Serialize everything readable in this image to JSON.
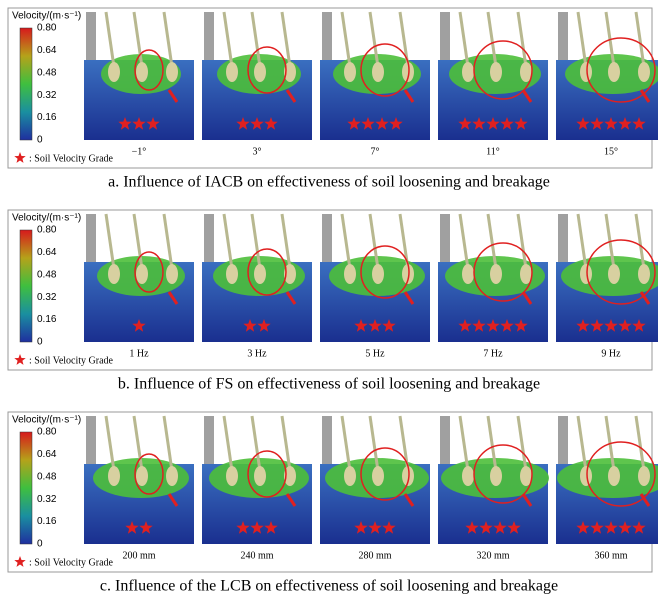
{
  "panels": [
    {
      "colorbar": {
        "label": "Velocity/(m·s⁻¹)",
        "ticks": [
          "0.80",
          "0.64",
          "0.48",
          "0.32",
          "0.16",
          "0"
        ]
      },
      "legend": ": Soil Velocity Grade",
      "images": [
        {
          "label": "−1°",
          "stars": 3
        },
        {
          "label": "3°",
          "stars": 3
        },
        {
          "label": "7°",
          "stars": 4
        },
        {
          "label": "11°",
          "stars": 5
        },
        {
          "label": "15°",
          "stars": 5
        }
      ],
      "caption": "a. Influence of IACB on effectiveness of soil loosening and breakage"
    },
    {
      "colorbar": {
        "label": "Velocity/(m·s⁻¹)",
        "ticks": [
          "0.80",
          "0.64",
          "0.48",
          "0.32",
          "0.16",
          "0"
        ]
      },
      "legend": ": Soil Velocity Grade",
      "images": [
        {
          "label": "1 Hz",
          "stars": 1
        },
        {
          "label": "3 Hz",
          "stars": 2
        },
        {
          "label": "5 Hz",
          "stars": 3
        },
        {
          "label": "7 Hz",
          "stars": 5
        },
        {
          "label": "9 Hz",
          "stars": 5
        }
      ],
      "caption": "b. Influence of FS on effectiveness of soil loosening and breakage"
    },
    {
      "colorbar": {
        "label": "Velocity/(m·s⁻¹)",
        "ticks": [
          "0.80",
          "0.64",
          "0.48",
          "0.32",
          "0.16",
          "0"
        ]
      },
      "legend": ": Soil Velocity Grade",
      "images": [
        {
          "label": "200 mm",
          "stars": 2
        },
        {
          "label": "240 mm",
          "stars": 3
        },
        {
          "label": "280 mm",
          "stars": 3
        },
        {
          "label": "320 mm",
          "stars": 4
        },
        {
          "label": "360 mm",
          "stars": 5
        }
      ],
      "caption": "c. Influence of the LCB on effectiveness of soil loosening and breakage"
    }
  ]
}
